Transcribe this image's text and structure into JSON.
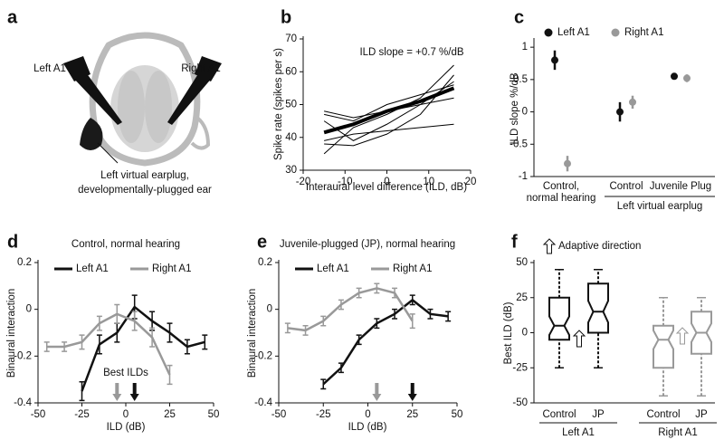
{
  "panel_labels": [
    "a",
    "b",
    "c",
    "d",
    "e",
    "f"
  ],
  "illustration": {
    "left_label": "Left A1",
    "right_label": "Right A1",
    "caption": [
      "Left virtual earplug,",
      "developmentally-plugged ear"
    ]
  },
  "chart_data": [
    {
      "type": "line",
      "xlabel": "Interaural level difference (ILD, dB)",
      "ylabel": "Spike rate (spikes per s)",
      "annotation": "ILD slope = +0.7 %/dB",
      "x": [
        -15,
        -8,
        0,
        8,
        16
      ],
      "xlim": [
        -20,
        20
      ],
      "xticks": [
        -20,
        -10,
        0,
        10,
        20
      ],
      "ylim": [
        30,
        70
      ],
      "yticks": [
        30,
        40,
        50,
        60,
        70
      ],
      "series": [
        {
          "color": "#000000",
          "width": 1,
          "values": [
            35,
            43,
            47,
            52,
            62
          ]
        },
        {
          "color": "#000000",
          "width": 1,
          "values": [
            38,
            37.5,
            41,
            47,
            59
          ]
        },
        {
          "color": "#000000",
          "width": 1,
          "values": [
            45,
            39,
            44,
            50,
            57
          ]
        },
        {
          "color": "#000000",
          "width": 1,
          "values": [
            47,
            45,
            50,
            53,
            56
          ]
        },
        {
          "color": "#000000",
          "width": 1,
          "values": [
            39,
            41,
            42,
            43,
            44
          ]
        },
        {
          "color": "#000000",
          "width": 1,
          "values": [
            48,
            46,
            48,
            50,
            52
          ]
        },
        {
          "color": "#000000",
          "width": 4,
          "values": [
            41.5,
            44,
            48,
            51,
            55
          ]
        }
      ]
    },
    {
      "type": "dot",
      "ylabel": "ILD slope %/dB",
      "categories": [
        "Control,\nnormal hearing",
        "Control",
        "Juvenile Plug"
      ],
      "group_label": "Left virtual earplug",
      "ylim": [
        -1,
        1.1
      ],
      "yticks": [
        -1,
        -0.5,
        0,
        0.5,
        1
      ],
      "series": [
        {
          "name": "Left A1",
          "color": "#111111",
          "values": [
            0.8,
            0,
            0.55
          ],
          "errors": [
            0.15,
            0.15,
            0.05
          ]
        },
        {
          "name": "Right A1",
          "color": "#999999",
          "values": [
            -0.8,
            0.15,
            0.52
          ],
          "errors": [
            0.12,
            0.1,
            0.06
          ]
        }
      ]
    },
    {
      "type": "line_error",
      "title": "Control, normal hearing",
      "xlabel": "ILD (dB)",
      "ylabel": "Binaural interaction",
      "annotation": "Best ILDs",
      "xlim": [
        -50,
        50
      ],
      "xticks": [
        -50,
        -25,
        0,
        25,
        50
      ],
      "ylim": [
        -0.4,
        0.2
      ],
      "yticks": [
        -0.4,
        -0.2,
        0,
        0.2
      ],
      "arrows": [
        {
          "value": -5,
          "color": "#999999"
        },
        {
          "value": 5,
          "color": "#111111"
        }
      ],
      "series": [
        {
          "name": "Left A1",
          "color": "#111111",
          "x": [
            -25,
            -15,
            -5,
            5,
            15,
            25,
            35,
            45
          ],
          "values": [
            -0.35,
            -0.15,
            -0.1,
            0.01,
            -0.05,
            -0.1,
            -0.16,
            -0.14
          ],
          "errors": [
            0.04,
            0.04,
            0.04,
            0.05,
            0.04,
            0.04,
            0.03,
            0.03
          ]
        },
        {
          "name": "Right A1",
          "color": "#999999",
          "x": [
            -45,
            -35,
            -25,
            -15,
            -5,
            5,
            15,
            25
          ],
          "values": [
            -0.16,
            -0.16,
            -0.14,
            -0.06,
            -0.02,
            -0.05,
            -0.12,
            -0.28
          ],
          "errors": [
            0.02,
            0.02,
            0.03,
            0.03,
            0.04,
            0.04,
            0.04,
            0.04
          ]
        }
      ]
    },
    {
      "type": "line_error",
      "title": "Juvenile-plugged (JP), normal hearing",
      "xlabel": "ILD (dB)",
      "ylabel": "Binaural interaction",
      "xlim": [
        -50,
        50
      ],
      "xticks": [
        -50,
        -25,
        0,
        25,
        50
      ],
      "ylim": [
        -0.4,
        0.2
      ],
      "yticks": [
        -0.4,
        -0.2,
        0,
        0.2
      ],
      "arrows": [
        {
          "value": 5,
          "color": "#999999"
        },
        {
          "value": 25,
          "color": "#111111"
        }
      ],
      "series": [
        {
          "name": "Left A1",
          "color": "#111111",
          "x": [
            -25,
            -15,
            -5,
            5,
            15,
            25,
            35,
            45
          ],
          "values": [
            -0.32,
            -0.25,
            -0.13,
            -0.06,
            -0.02,
            0.04,
            -0.02,
            -0.03
          ],
          "errors": [
            0.02,
            0.02,
            0.02,
            0.02,
            0.02,
            0.02,
            0.02,
            0.02
          ]
        },
        {
          "name": "Right A1",
          "color": "#999999",
          "x": [
            -45,
            -35,
            -25,
            -15,
            -5,
            5,
            15,
            25
          ],
          "values": [
            -0.08,
            -0.09,
            -0.05,
            0.02,
            0.07,
            0.09,
            0.07,
            -0.05
          ],
          "errors": [
            0.02,
            0.02,
            0.02,
            0.02,
            0.02,
            0.02,
            0.02,
            0.03
          ]
        }
      ]
    },
    {
      "type": "box",
      "ylabel": "Best ILD (dB)",
      "annotation": "Adaptive direction",
      "categories": [
        "Control",
        "JP",
        "Control",
        "JP"
      ],
      "groups": [
        "Left A1",
        "Right A1"
      ],
      "ylim": [
        -50,
        50
      ],
      "yticks": [
        -50,
        -25,
        0,
        25,
        50
      ],
      "boxes": [
        {
          "color": "#111111",
          "min": -25,
          "q1": -5,
          "median": 5,
          "q3": 25,
          "max": 45
        },
        {
          "color": "#111111",
          "min": -25,
          "q1": 0,
          "median": 15,
          "q3": 35,
          "max": 45
        },
        {
          "color": "#999999",
          "min": -45,
          "q1": -25,
          "median": -5,
          "q3": 5,
          "max": 25
        },
        {
          "color": "#999999",
          "min": -45,
          "q1": -15,
          "median": 0,
          "q3": 15,
          "max": 25
        }
      ]
    }
  ]
}
